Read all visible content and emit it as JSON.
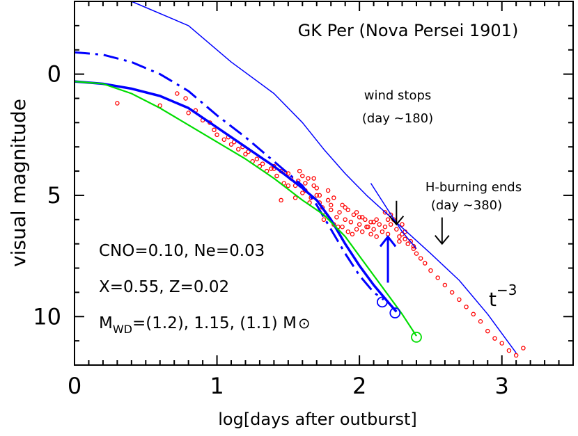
{
  "chart_data": {
    "type": "scatter",
    "title": "GK Per (Nova Persei 1901)",
    "xlabel": "log[days after outburst]",
    "ylabel": "visual magnitude",
    "xlim": [
      0,
      3.5
    ],
    "ylim": [
      12.0,
      -3.0
    ],
    "x_ticks": [
      "0",
      "1",
      "2",
      "3"
    ],
    "y_ticks": [
      "0",
      "5",
      "10"
    ],
    "grid": false,
    "colors": {
      "observations": "#ff0000",
      "model_blue": "#0000ff",
      "model_green": "#00dd00",
      "axis": "#000000"
    },
    "annotations": {
      "wind_stops_1": "wind stops",
      "wind_stops_2": "(day ~180)",
      "h_burning_1": "H-burning ends",
      "h_burning_2": "(day ~380)",
      "power_law_base": "t",
      "power_law_exp": "−3",
      "cno": "CNO=0.10, Ne=0.03",
      "xz": "X=0.55, Z=0.02",
      "mwd_prefix": "M",
      "mwd_sub": "WD",
      "mwd_suffix": "=(1.2), 1.15, (1.1) M",
      "sun_symbol": "⊙"
    },
    "arrows": {
      "wind_stops": [
        2.26,
        6.2
      ],
      "h_burning": [
        2.58,
        7.0
      ],
      "rise": [
        2.2,
        8.6
      ]
    },
    "series": [
      {
        "style": "thin-blue",
        "x": [
          0.0,
          0.4,
          0.8,
          1.1,
          1.4,
          1.6,
          1.75,
          1.9,
          2.05,
          2.2,
          2.35,
          2.5,
          2.7,
          2.9,
          3.1
        ],
        "y": [
          -3.0,
          -3.0,
          -2.0,
          -0.5,
          0.8,
          2.0,
          3.1,
          4.1,
          5.0,
          5.8,
          6.6,
          7.4,
          8.5,
          9.9,
          11.5
        ]
      },
      {
        "style": "thin-blue-segment",
        "x": [
          2.08,
          2.2,
          2.3,
          2.4
        ],
        "y": [
          4.5,
          5.6,
          6.5,
          7.2
        ]
      },
      {
        "style": "dashdot-blue",
        "x": [
          0.0,
          0.2,
          0.4,
          0.6,
          0.8,
          1.0,
          1.2,
          1.4,
          1.6,
          1.7,
          1.8,
          1.9,
          2.0,
          2.1,
          2.17
        ],
        "y": [
          -0.9,
          -0.8,
          -0.5,
          0.0,
          0.7,
          1.7,
          2.6,
          3.6,
          4.6,
          5.4,
          6.4,
          7.4,
          8.3,
          9.0,
          9.3
        ]
      },
      {
        "style": "thick-blue",
        "x": [
          0.0,
          0.2,
          0.4,
          0.6,
          0.8,
          1.0,
          1.2,
          1.4,
          1.6,
          1.7,
          1.8,
          1.9,
          2.0,
          2.1,
          2.2,
          2.26
        ],
        "y": [
          0.3,
          0.4,
          0.6,
          0.9,
          1.4,
          2.2,
          3.0,
          3.8,
          4.7,
          5.2,
          6.0,
          7.0,
          7.9,
          8.7,
          9.4,
          9.8
        ]
      },
      {
        "style": "green",
        "x": [
          0.0,
          0.2,
          0.4,
          0.6,
          0.8,
          1.0,
          1.2,
          1.4,
          1.6,
          1.75,
          1.9,
          2.0,
          2.1,
          2.2,
          2.3,
          2.4
        ],
        "y": [
          0.3,
          0.4,
          0.8,
          1.4,
          2.1,
          2.8,
          3.5,
          4.3,
          5.2,
          5.8,
          6.7,
          7.5,
          8.3,
          9.1,
          9.9,
          10.8
        ]
      }
    ],
    "endpoint_markers": [
      {
        "x": 2.16,
        "y": 9.4,
        "color": "#0000ff"
      },
      {
        "x": 2.25,
        "y": 9.85,
        "color": "#0000ff"
      },
      {
        "x": 2.4,
        "y": 10.85,
        "color": "#00dd00"
      }
    ],
    "observations": {
      "x": [
        0.3,
        0.6,
        0.72,
        0.78,
        0.8,
        0.85,
        0.9,
        0.95,
        0.98,
        1.0,
        1.05,
        1.08,
        1.1,
        1.12,
        1.15,
        1.18,
        1.2,
        1.22,
        1.25,
        1.28,
        1.3,
        1.32,
        1.35,
        1.38,
        1.4,
        1.42,
        1.45,
        1.47,
        1.5,
        1.52,
        1.55,
        1.57,
        1.6,
        1.62,
        1.64,
        1.66,
        1.68,
        1.7,
        1.72,
        1.74,
        1.76,
        1.78,
        1.8,
        1.82,
        1.84,
        1.86,
        1.88,
        1.9,
        1.92,
        1.94,
        1.96,
        1.98,
        2.0,
        2.02,
        2.04,
        2.06,
        2.08,
        2.1,
        2.12,
        2.14,
        2.16,
        2.18,
        2.2,
        2.22,
        2.24,
        2.26,
        2.28,
        2.3,
        2.32,
        2.34,
        2.36,
        2.38,
        2.4,
        2.43,
        2.46,
        2.5,
        2.55,
        2.6,
        2.65,
        2.7,
        2.75,
        2.8,
        2.85,
        2.9,
        2.95,
        3.0,
        3.05,
        3.1,
        3.15,
        1.45,
        1.55,
        1.65,
        1.75,
        1.85,
        1.95,
        2.05,
        1.6,
        1.7,
        1.8,
        1.9,
        2.0,
        2.1,
        2.2,
        2.3,
        1.5,
        1.62,
        1.72,
        1.82,
        1.92,
        2.02,
        2.12,
        2.22,
        2.32,
        1.4,
        1.48,
        1.58,
        1.68,
        1.78,
        1.88,
        1.98,
        2.08,
        2.18,
        2.28,
        2.38
      ],
      "y": [
        1.2,
        1.3,
        0.8,
        1.0,
        1.6,
        1.5,
        1.9,
        2.0,
        2.3,
        2.5,
        2.7,
        2.6,
        2.9,
        2.8,
        3.1,
        3.0,
        3.3,
        3.2,
        3.6,
        3.5,
        3.8,
        3.7,
        4.0,
        3.9,
        3.8,
        4.2,
        4.0,
        4.5,
        4.1,
        4.3,
        4.6,
        4.4,
        4.2,
        4.8,
        4.3,
        5.1,
        4.6,
        5.0,
        5.3,
        5.5,
        5.8,
        5.2,
        5.6,
        6.2,
        5.9,
        5.7,
        6.3,
        6.0,
        6.5,
        6.1,
        5.8,
        6.4,
        6.2,
        5.9,
        6.0,
        6.3,
        6.1,
        6.4,
        6.0,
        6.2,
        6.5,
        6.3,
        6.6,
        6.2,
        6.0,
        6.4,
        6.7,
        6.6,
        6.8,
        7.0,
        6.9,
        7.2,
        7.4,
        7.6,
        7.8,
        8.1,
        8.4,
        8.7,
        9.0,
        9.3,
        9.6,
        9.9,
        10.2,
        10.6,
        10.9,
        11.1,
        11.4,
        11.6,
        11.3,
        5.2,
        5.1,
        5.3,
        6.0,
        6.3,
        6.6,
        6.3,
        4.9,
        4.7,
        5.4,
        5.5,
        5.9,
        6.1,
        6.0,
        6.2,
        4.6,
        4.5,
        5.0,
        5.1,
        5.6,
        6.5,
        6.7,
        5.8,
        6.5,
        3.9,
        4.1,
        4.0,
        4.3,
        4.8,
        5.4,
        5.7,
        6.6,
        5.7,
        6.9,
        7.1
      ]
    }
  }
}
